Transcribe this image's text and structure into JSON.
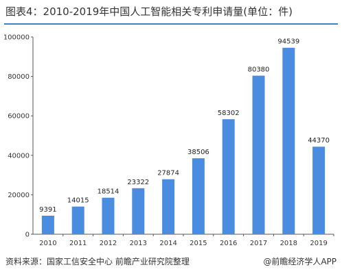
{
  "header": {
    "title": "图表4：2010-2019年中国人工智能相关专利申请量(单位：件)"
  },
  "footer": {
    "source": "资料来源：国家工信安全中心 前瞻产业研究院整理",
    "brand": "@前瞻经济学人APP"
  },
  "chart_data": {
    "type": "bar",
    "title": "",
    "xlabel": "",
    "ylabel": "",
    "categories": [
      "2010",
      "2011",
      "2012",
      "2013",
      "2014",
      "2015",
      "2016",
      "2017",
      "2018",
      "2019"
    ],
    "values": [
      9391,
      14015,
      18514,
      23322,
      27874,
      38506,
      58302,
      80380,
      94539,
      44370
    ],
    "ylim": [
      0,
      100000
    ],
    "yticks": [
      "0",
      "20000",
      "40000",
      "60000",
      "80000",
      "100000"
    ],
    "bar_color": "#4a8de0",
    "grid": false,
    "legend": "none"
  }
}
